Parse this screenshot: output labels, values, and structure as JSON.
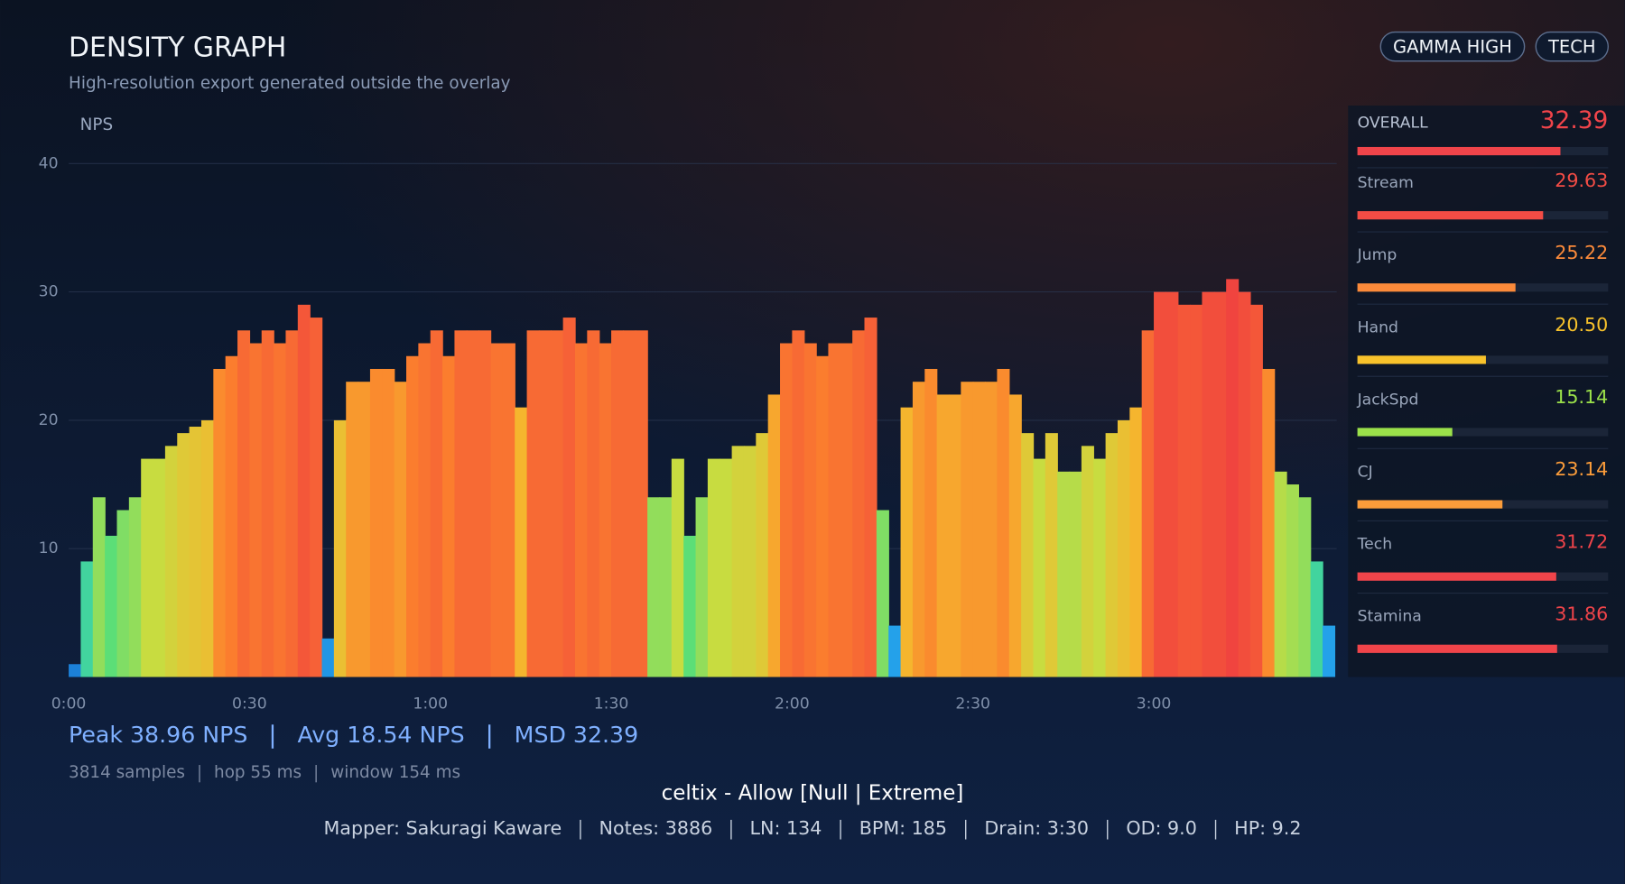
{
  "header": {
    "title": "DENSITY GRAPH",
    "subtitle": "High-resolution export generated outside the overlay",
    "badges": [
      "GAMMA HIGH",
      "TECH"
    ]
  },
  "chart_data": {
    "type": "density-bars",
    "y_label": "NPS",
    "xlim": [
      0,
      210
    ],
    "ylim": [
      0,
      40
    ],
    "yticks": [
      10,
      20,
      30,
      40
    ],
    "grid": true,
    "xticks": [
      {
        "value": 0,
        "label": "0:00"
      },
      {
        "value": 30,
        "label": "0:30"
      },
      {
        "value": 60,
        "label": "1:00"
      },
      {
        "value": 90,
        "label": "1:30"
      },
      {
        "value": 120,
        "label": "2:00"
      },
      {
        "value": 150,
        "label": "2:30"
      },
      {
        "value": 180,
        "label": "3:00"
      }
    ],
    "colorscale": [
      [
        0,
        "#1976d2"
      ],
      [
        6,
        "#29b6f6"
      ],
      [
        10,
        "#4ade80"
      ],
      [
        17,
        "#c8dc40"
      ],
      [
        21,
        "#f5b52e"
      ],
      [
        25,
        "#fb7d2e"
      ],
      [
        31,
        "#f0443f"
      ]
    ],
    "x": [
      0,
      2,
      4,
      6,
      8,
      10,
      12,
      14,
      16,
      18,
      20,
      22,
      24,
      26,
      28,
      30,
      32,
      34,
      36,
      38,
      40,
      42,
      44,
      46,
      48,
      50,
      52,
      54,
      56,
      58,
      60,
      62,
      64,
      66,
      68,
      70,
      72,
      74,
      76,
      78,
      80,
      82,
      84,
      86,
      88,
      90,
      92,
      94,
      96,
      98,
      100,
      102,
      104,
      106,
      108,
      110,
      112,
      114,
      116,
      118,
      120,
      122,
      124,
      126,
      128,
      130,
      132,
      134,
      136,
      138,
      140,
      142,
      144,
      146,
      148,
      150,
      152,
      154,
      156,
      158,
      160,
      162,
      164,
      166,
      168,
      170,
      172,
      174,
      176,
      178,
      180,
      182,
      184,
      186,
      188,
      190,
      192,
      194,
      196,
      198,
      200,
      202,
      204,
      206,
      208
    ],
    "values": [
      1,
      9,
      14,
      11,
      13,
      14,
      17,
      17,
      18,
      19,
      19.5,
      20,
      24,
      25,
      27,
      26,
      27,
      26,
      27,
      29,
      28,
      3,
      20,
      23,
      23,
      24,
      24,
      23,
      25,
      26,
      27,
      25,
      27,
      27,
      27,
      26,
      26,
      21,
      27,
      27,
      27,
      28,
      26,
      27,
      26,
      27,
      27,
      27,
      14,
      14,
      17,
      11,
      14,
      17,
      17,
      18,
      18,
      19,
      22,
      26,
      27,
      26,
      25,
      26,
      26,
      27,
      28,
      13,
      4,
      21,
      23,
      24,
      22,
      22,
      23,
      23,
      23,
      24,
      22,
      19,
      17,
      19,
      16,
      16,
      18,
      17,
      19,
      20,
      21,
      27,
      30,
      30,
      29,
      29,
      30,
      30,
      31,
      30,
      29,
      24,
      16,
      15,
      14,
      9,
      4
    ]
  },
  "stats": {
    "items": [
      "Peak 38.96 NPS",
      "Avg 18.54 NPS",
      "MSD 32.39"
    ],
    "meta": [
      "3814 samples",
      "hop 55 ms",
      "window 154 ms"
    ]
  },
  "skills": {
    "xlim": [
      0,
      40
    ],
    "rows": [
      {
        "name": "OVERALL",
        "value": 32.39,
        "color": "#f0444a"
      },
      {
        "name": "Stream",
        "value": 29.63,
        "color": "#f34c45"
      },
      {
        "name": "Jump",
        "value": 25.22,
        "color": "#fb8a3a"
      },
      {
        "name": "Hand",
        "value": 20.5,
        "value_label": "20.50",
        "color": "#f8c22b"
      },
      {
        "name": "JackSpd",
        "value": 15.14,
        "color": "#9be14a"
      },
      {
        "name": "CJ",
        "value": 23.14,
        "color": "#fb9c3a"
      },
      {
        "name": "Tech",
        "value": 31.72,
        "color": "#f0444a"
      },
      {
        "name": "Stamina",
        "value": 31.86,
        "color": "#f0444a"
      }
    ]
  },
  "footer": {
    "song": "celtix - Allow [Null | Extreme]",
    "details": [
      "Mapper: Sakuragi Kaware",
      "Notes: 3886",
      "LN: 134",
      "BPM: 185",
      "Drain: 3:30",
      "OD: 9.0",
      "HP: 9.2"
    ]
  }
}
